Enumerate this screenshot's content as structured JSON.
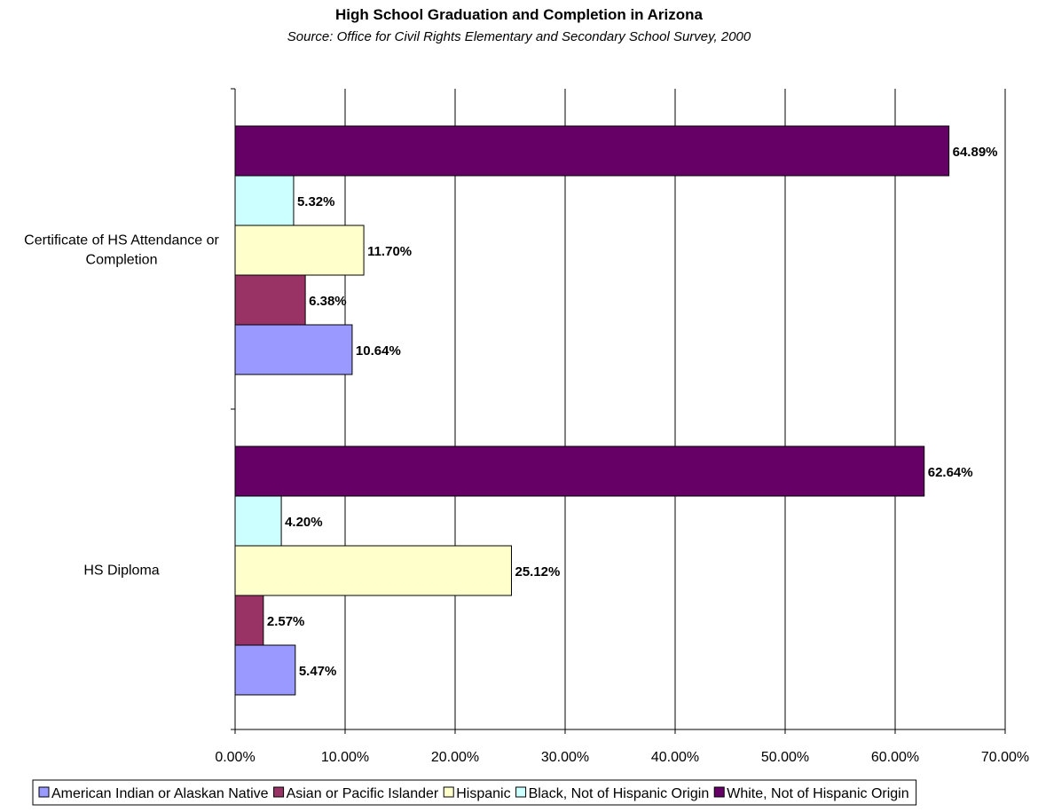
{
  "chart_data": {
    "type": "bar",
    "orientation": "horizontal",
    "title": "High School Graduation and Completion in Arizona",
    "subtitle": "Source: Office for Civil Rights Elementary and Secondary School Survey, 2000",
    "categories": [
      "Certificate of HS Attendance or Completion",
      "HS Diploma"
    ],
    "series": [
      {
        "name": "American Indian or Alaskan Native",
        "values": [
          10.64,
          5.47
        ],
        "labels": [
          "10.64%",
          "5.47%"
        ],
        "color": "#9999ff"
      },
      {
        "name": "Asian or Pacific Islander",
        "values": [
          6.38,
          2.57
        ],
        "labels": [
          "6.38%",
          "2.57%"
        ],
        "color": "#993366"
      },
      {
        "name": "Hispanic",
        "values": [
          11.7,
          25.12
        ],
        "labels": [
          "11.70%",
          "25.12%"
        ],
        "color": "#ffffcc"
      },
      {
        "name": "Black, Not of Hispanic Origin",
        "values": [
          5.32,
          4.2
        ],
        "labels": [
          "5.32%",
          "4.20%"
        ],
        "color": "#ccffff"
      },
      {
        "name": "White, Not of Hispanic Origin",
        "values": [
          64.89,
          62.64
        ],
        "labels": [
          "64.89%",
          "62.64%"
        ],
        "color": "#660066"
      }
    ],
    "xlim": [
      0,
      70
    ],
    "xticks": [
      0,
      10,
      20,
      30,
      40,
      50,
      60,
      70
    ],
    "xtick_labels": [
      "0.00%",
      "10.00%",
      "20.00%",
      "30.00%",
      "40.00%",
      "50.00%",
      "60.00%",
      "70.00%"
    ],
    "xlabel": "",
    "ylabel": "",
    "grid": "vertical",
    "legend_position": "bottom"
  }
}
